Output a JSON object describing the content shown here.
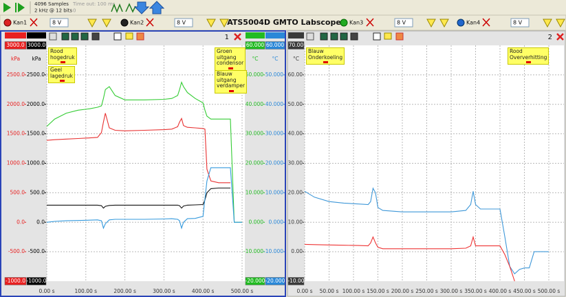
{
  "toolbar": {
    "samples": "4096 Samples",
    "rate": "2 kHz @ 12 bits",
    "timeout": "Time out: 100 ms",
    "timeout_value": "0"
  },
  "title": "ATS5004D GMTO Labscope",
  "channels": [
    {
      "name": "Kan1",
      "range": "8 V"
    },
    {
      "name": "Kan2",
      "range": "8 V"
    },
    {
      "name": "Kan3",
      "range": "8 V"
    },
    {
      "name": "Kan4",
      "range": "8 V"
    }
  ],
  "chart_data": [
    {
      "type": "line",
      "panel": "1",
      "grid": true,
      "xlim": [
        0,
        500
      ],
      "xticks": [
        {
          "value": 0,
          "label": "0.00 s"
        },
        {
          "value": 100,
          "label": "100.00 s"
        },
        {
          "value": 200,
          "label": "200.00 s"
        },
        {
          "value": 300,
          "label": "300.00 s"
        },
        {
          "value": 400,
          "label": "400.00 s"
        },
        {
          "value": 500,
          "label": "500.00 s"
        }
      ],
      "ylim": [
        -1000,
        3000
      ],
      "yticks": [
        {
          "value": 2500,
          "label": "2500.0"
        },
        {
          "value": 2000,
          "label": "2000.0"
        },
        {
          "value": 1500,
          "label": "1500.0"
        },
        {
          "value": 1000,
          "label": "1000.0"
        },
        {
          "value": 500,
          "label": "500.0"
        },
        {
          "value": 0,
          "label": "0.0"
        },
        {
          "value": -500,
          "label": "-500.0"
        }
      ],
      "y2lim": [
        -20,
        60
      ],
      "y2ticks": [
        {
          "value": 50,
          "label": "50.000"
        },
        {
          "value": 40,
          "label": "40.000"
        },
        {
          "value": 30,
          "label": "30.000"
        },
        {
          "value": 20,
          "label": "20.000"
        },
        {
          "value": 10,
          "label": "10.000"
        },
        {
          "value": 0,
          "label": "0.000"
        },
        {
          "value": -10,
          "label": "-10.000"
        }
      ],
      "scales": [
        {
          "color": "#e82020",
          "unit": "kPa",
          "axis": "y",
          "ends": [
            {
              "value": 3000,
              "label": "3000.0"
            },
            {
              "value": -1000,
              "label": "-1000.0"
            }
          ]
        },
        {
          "color": "#000000",
          "unit": "kPa",
          "axis": "y",
          "ends": [
            {
              "value": 3000,
              "label": "3000.0"
            },
            {
              "value": -1000,
              "label": "-1000.0"
            }
          ]
        },
        {
          "color": "#22bb22",
          "unit": "°C",
          "axis": "y2",
          "ends": [
            {
              "value": 60,
              "label": "60.000"
            },
            {
              "value": -20,
              "label": "-20.000"
            }
          ]
        },
        {
          "color": "#2a88d8",
          "unit": "°C",
          "axis": "y2",
          "ends": [
            {
              "value": 60,
              "label": "60.000"
            },
            {
              "value": -20,
              "label": "-20.000"
            }
          ]
        }
      ],
      "x": [
        0,
        20,
        50,
        80,
        110,
        130,
        140,
        145,
        150,
        160,
        175,
        200,
        250,
        300,
        320,
        335,
        340,
        345,
        350,
        360,
        380,
        400,
        405,
        410,
        420,
        440,
        465,
        470,
        480,
        500
      ],
      "series": [
        {
          "name": "Rood hogedruk",
          "color": "#e83030",
          "axis": "y",
          "values": [
            1390,
            1400,
            1410,
            1420,
            1430,
            1440,
            1520,
            1700,
            1850,
            1600,
            1560,
            1550,
            1560,
            1570,
            1580,
            1620,
            1700,
            1760,
            1640,
            1610,
            1600,
            1590,
            1580,
            900,
            700,
            670,
            670,
            670,
            null,
            null
          ]
        },
        {
          "name": "Geel lagedruk",
          "color": "#111111",
          "axis": "y",
          "values": [
            290,
            290,
            290,
            290,
            290,
            290,
            280,
            240,
            270,
            285,
            290,
            290,
            290,
            290,
            290,
            290,
            280,
            240,
            275,
            290,
            295,
            300,
            380,
            500,
            570,
            580,
            580,
            580,
            null,
            null
          ]
        },
        {
          "name": "Groen uitgang condensor",
          "color": "#33cc33",
          "axis": "y2",
          "values": [
            32.5,
            35,
            37,
            38,
            38.5,
            39,
            39.5,
            42,
            45,
            46,
            43,
            41.5,
            41.5,
            41.7,
            42,
            43,
            45,
            47.5,
            46,
            44,
            42,
            40.5,
            38,
            36,
            35,
            35,
            35,
            35,
            0,
            0
          ]
        },
        {
          "name": "Blauw uitgang verdamper",
          "color": "#3399dd",
          "axis": "y2",
          "values": [
            0,
            0.3,
            0.5,
            0.6,
            0.7,
            0.8,
            0.5,
            -2,
            -0.5,
            0.8,
            1,
            1,
            1,
            1.1,
            1.2,
            1,
            0.5,
            -2,
            0,
            1.2,
            1.3,
            2,
            8,
            14,
            18.5,
            18.5,
            18.5,
            18.5,
            0,
            0
          ]
        }
      ]
    },
    {
      "type": "line",
      "panel": "2",
      "grid": true,
      "xlim": [
        0,
        500
      ],
      "xticks": [
        {
          "value": 0,
          "label": "0.00 s"
        },
        {
          "value": 50,
          "label": "50.00 s"
        },
        {
          "value": 100,
          "label": "100.00 s"
        },
        {
          "value": 150,
          "label": "150.00 s"
        },
        {
          "value": 200,
          "label": "200.00 s"
        },
        {
          "value": 250,
          "label": "250.00 s"
        },
        {
          "value": 300,
          "label": "300.00 s"
        },
        {
          "value": 350,
          "label": "350.00 s"
        },
        {
          "value": 400,
          "label": "400.00 s"
        },
        {
          "value": 450,
          "label": "450.00 s"
        },
        {
          "value": 500,
          "label": "500.00 s"
        }
      ],
      "ylim": [
        -10,
        70
      ],
      "yticks": [
        {
          "value": 60,
          "label": "60.00"
        },
        {
          "value": 50,
          "label": "50.00"
        },
        {
          "value": 40,
          "label": "40.00"
        },
        {
          "value": 30,
          "label": "30.00"
        },
        {
          "value": 20,
          "label": "20.00"
        },
        {
          "value": 10,
          "label": "10.00"
        },
        {
          "value": 0,
          "label": "0.00"
        }
      ],
      "scales": [
        {
          "color": "#3a3a3a",
          "unit": "°C",
          "axis": "y",
          "ends": [
            {
              "value": 70,
              "label": "70.00"
            },
            {
              "value": -10,
              "label": "-10.00"
            }
          ]
        }
      ],
      "x": [
        0,
        20,
        50,
        80,
        110,
        130,
        135,
        140,
        145,
        150,
        160,
        200,
        250,
        300,
        330,
        340,
        345,
        350,
        360,
        380,
        400,
        410,
        420,
        430,
        440,
        450,
        460,
        470,
        480,
        500
      ],
      "series": [
        {
          "name": "Blauw Onderkoeling",
          "color": "#3d97d8",
          "axis": "y",
          "values": [
            20.5,
            18.5,
            17,
            16.5,
            16.2,
            16,
            17,
            21.5,
            20,
            15,
            14,
            13.5,
            13.5,
            13.5,
            14,
            16,
            20.5,
            16,
            14.5,
            14.5,
            14.5,
            5,
            -5,
            -7.5,
            -6,
            -5.5,
            -5.5,
            0,
            0,
            0
          ]
        },
        {
          "name": "Rood Oververhitting",
          "color": "#ee3333",
          "axis": "y",
          "values": [
            2.5,
            2.4,
            2.3,
            2.2,
            2.1,
            2,
            3,
            5,
            3,
            1.5,
            1,
            1,
            1,
            1,
            1.2,
            2,
            5,
            2,
            2,
            2,
            2,
            -1,
            -5,
            -10,
            null,
            null,
            null,
            null,
            null,
            null
          ]
        }
      ]
    }
  ]
}
